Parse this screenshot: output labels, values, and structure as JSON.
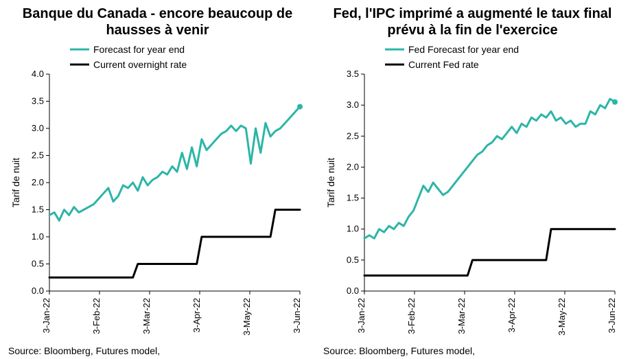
{
  "colors": {
    "forecast": "#2cb5a8",
    "current": "#000000",
    "axis": "#000000",
    "text": "#000000",
    "background": "#ffffff"
  },
  "typography": {
    "title_fontsize": 20,
    "title_weight": 700,
    "axis_label_fontsize": 14,
    "tick_fontsize": 13,
    "legend_fontsize": 14,
    "source_fontsize": 14
  },
  "line_widths": {
    "forecast": 3,
    "current": 3,
    "axis": 1
  },
  "left_chart": {
    "type": "line",
    "title": "Banque du Canada - encore beaucoup de hausses à venir",
    "y_label": "Tarif de nuit",
    "source": "Source: Bloomberg, Futures model,",
    "ylim": [
      0.0,
      4.0
    ],
    "ytick_step": 0.5,
    "x_categories": [
      "3-Jan-22",
      "3-Feb-22",
      "3-Mar-22",
      "3-Apr-22",
      "3-May-22",
      "3-Jun-22"
    ],
    "legend": {
      "forecast": "Forecast for year end",
      "current": "Current overnight rate"
    },
    "series": {
      "forecast": [
        1.4,
        1.45,
        1.3,
        1.5,
        1.4,
        1.55,
        1.45,
        1.5,
        1.55,
        1.6,
        1.7,
        1.8,
        1.9,
        1.65,
        1.75,
        1.95,
        1.9,
        2.0,
        1.85,
        2.1,
        1.95,
        2.05,
        2.1,
        2.2,
        2.15,
        2.3,
        2.2,
        2.55,
        2.25,
        2.65,
        2.3,
        2.8,
        2.6,
        2.7,
        2.8,
        2.9,
        2.95,
        3.05,
        2.95,
        3.05,
        3.0,
        2.35,
        3.0,
        2.55,
        3.1,
        2.85,
        2.95,
        3.0,
        3.1,
        3.2,
        3.3,
        3.4
      ],
      "current": [
        0.25,
        0.25,
        0.25,
        0.25,
        0.25,
        0.25,
        0.25,
        0.25,
        0.25,
        0.25,
        0.25,
        0.25,
        0.25,
        0.25,
        0.25,
        0.25,
        0.25,
        0.25,
        0.5,
        0.5,
        0.5,
        0.5,
        0.5,
        0.5,
        0.5,
        0.5,
        0.5,
        0.5,
        0.5,
        0.5,
        0.5,
        1.0,
        1.0,
        1.0,
        1.0,
        1.0,
        1.0,
        1.0,
        1.0,
        1.0,
        1.0,
        1.0,
        1.0,
        1.0,
        1.0,
        1.0,
        1.5,
        1.5,
        1.5,
        1.5,
        1.5,
        1.5
      ]
    }
  },
  "right_chart": {
    "type": "line",
    "title": "Fed, l'IPC imprimé a augmenté le taux final prévu à la fin de l'exercice",
    "y_label": "Tarif de nuit",
    "source": "Source: Bloomberg, Futures model,",
    "ylim": [
      0.0,
      3.5
    ],
    "ytick_step": 0.5,
    "x_categories": [
      "3-Jan-22",
      "3-Feb-22",
      "3-Mar-22",
      "3-Apr-22",
      "3-May-22",
      "3-Jun-22"
    ],
    "legend": {
      "forecast": "Fed Forecast for year end",
      "current": "Current Fed rate"
    },
    "series": {
      "forecast": [
        0.85,
        0.9,
        0.85,
        1.0,
        0.95,
        1.05,
        1.0,
        1.1,
        1.05,
        1.2,
        1.3,
        1.5,
        1.7,
        1.6,
        1.75,
        1.65,
        1.55,
        1.6,
        1.7,
        1.8,
        1.9,
        2.0,
        2.1,
        2.2,
        2.25,
        2.35,
        2.4,
        2.5,
        2.45,
        2.55,
        2.65,
        2.55,
        2.7,
        2.65,
        2.8,
        2.75,
        2.85,
        2.8,
        2.9,
        2.75,
        2.8,
        2.7,
        2.75,
        2.65,
        2.7,
        2.7,
        2.9,
        2.85,
        3.0,
        2.95,
        3.1,
        3.05
      ],
      "current": [
        0.25,
        0.25,
        0.25,
        0.25,
        0.25,
        0.25,
        0.25,
        0.25,
        0.25,
        0.25,
        0.25,
        0.25,
        0.25,
        0.25,
        0.25,
        0.25,
        0.25,
        0.25,
        0.25,
        0.25,
        0.25,
        0.25,
        0.5,
        0.5,
        0.5,
        0.5,
        0.5,
        0.5,
        0.5,
        0.5,
        0.5,
        0.5,
        0.5,
        0.5,
        0.5,
        0.5,
        0.5,
        0.5,
        1.0,
        1.0,
        1.0,
        1.0,
        1.0,
        1.0,
        1.0,
        1.0,
        1.0,
        1.0,
        1.0,
        1.0,
        1.0,
        1.0
      ]
    }
  }
}
